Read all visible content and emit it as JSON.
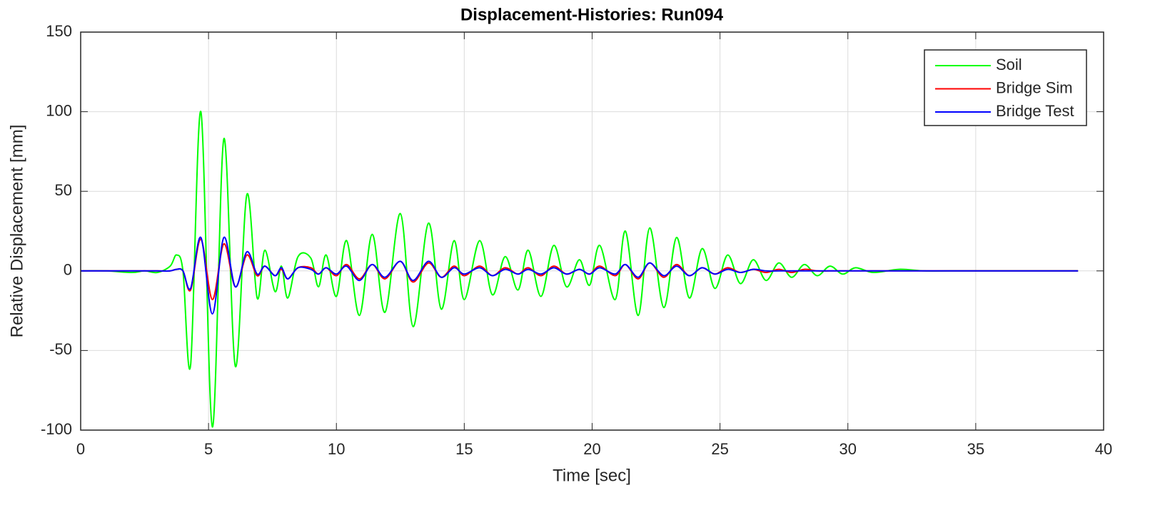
{
  "chart_data": {
    "type": "line",
    "title": "Displacement-Histories: Run094",
    "xlabel": "Time [sec]",
    "ylabel": "Relative Displacement [mm]",
    "x": [
      0,
      1,
      2,
      2.5,
      3,
      3.5,
      3.75,
      4.0,
      4.3,
      4.7,
      5.15,
      5.6,
      6.05,
      6.5,
      6.9,
      7.2,
      7.6,
      7.85,
      8.1,
      8.5,
      9.0,
      9.3,
      9.6,
      10.0,
      10.4,
      10.9,
      11.4,
      11.9,
      12.5,
      13.0,
      13.6,
      14.1,
      14.6,
      15.0,
      15.6,
      16.1,
      16.6,
      17.1,
      17.5,
      18.0,
      18.5,
      19.0,
      19.5,
      19.9,
      20.3,
      20.9,
      21.3,
      21.8,
      22.25,
      22.8,
      23.3,
      23.8,
      24.3,
      24.8,
      25.3,
      25.8,
      26.3,
      26.8,
      27.3,
      27.8,
      28.3,
      28.8,
      29.3,
      29.8,
      30.3,
      31,
      32,
      33,
      34,
      35,
      36,
      37,
      38,
      39
    ],
    "series": [
      {
        "name": "Soil",
        "color": "#00ff00",
        "values": [
          0,
          0,
          -1,
          0,
          -1,
          3,
          10,
          0,
          -59,
          100,
          -98,
          83,
          -60,
          48,
          -17,
          13,
          -13,
          3,
          -17,
          9,
          8,
          -10,
          10,
          -16,
          19,
          -28,
          23,
          -26,
          36,
          -35,
          30,
          -24,
          19,
          -18,
          19,
          -15,
          9,
          -12,
          13,
          -16,
          16,
          -10,
          7,
          -9,
          16,
          -18,
          25,
          -28,
          27,
          -23,
          21,
          -17,
          14,
          -11,
          10,
          -8,
          7,
          -6,
          5,
          -4,
          4,
          -3,
          3,
          -2,
          2,
          -1,
          1,
          0,
          0,
          0,
          0,
          0,
          0,
          0
        ]
      },
      {
        "name": "Bridge Sim",
        "color": "#ff0000",
        "values": [
          0,
          0,
          0,
          0,
          0,
          0,
          1,
          0,
          -12,
          20,
          -18,
          17,
          -10,
          10,
          -3,
          3,
          -3,
          1,
          -5,
          2,
          2,
          -2,
          2,
          -3,
          4,
          -5,
          4,
          -5,
          6,
          -7,
          5,
          -4,
          3,
          -3,
          3,
          -3,
          2,
          -2,
          2,
          -3,
          3,
          -2,
          1,
          -2,
          3,
          -3,
          4,
          -5,
          5,
          -4,
          4,
          -3,
          2,
          -2,
          2,
          -1,
          1,
          -1,
          1,
          -1,
          1,
          0,
          0,
          0,
          0,
          0,
          0,
          0,
          0,
          0,
          0,
          0,
          0,
          0
        ]
      },
      {
        "name": "Bridge Test",
        "color": "#0000ff",
        "values": [
          0,
          0,
          0,
          0,
          0,
          0,
          1,
          0,
          -11,
          21,
          -27,
          21,
          -10,
          12,
          -2,
          3,
          -3,
          2,
          -5,
          2,
          1,
          -2,
          2,
          -2,
          3,
          -6,
          4,
          -4,
          6,
          -6,
          6,
          -4,
          2,
          -2,
          2,
          -3,
          1,
          -2,
          1,
          -2,
          2,
          -2,
          1,
          -2,
          2,
          -2,
          4,
          -4,
          5,
          -3,
          3,
          -3,
          2,
          -2,
          1,
          -1,
          1,
          0,
          0,
          0,
          0,
          0,
          0,
          0,
          0,
          0,
          0,
          0,
          0,
          0,
          0,
          0,
          0,
          0
        ]
      }
    ],
    "xlim": [
      0,
      40
    ],
    "xticks": [
      0,
      5,
      10,
      15,
      20,
      25,
      30,
      35,
      40
    ],
    "ylim": [
      -100,
      150
    ],
    "yticks": [
      -100,
      -50,
      0,
      50,
      100,
      150
    ],
    "grid": true,
    "legend": "upper right"
  }
}
